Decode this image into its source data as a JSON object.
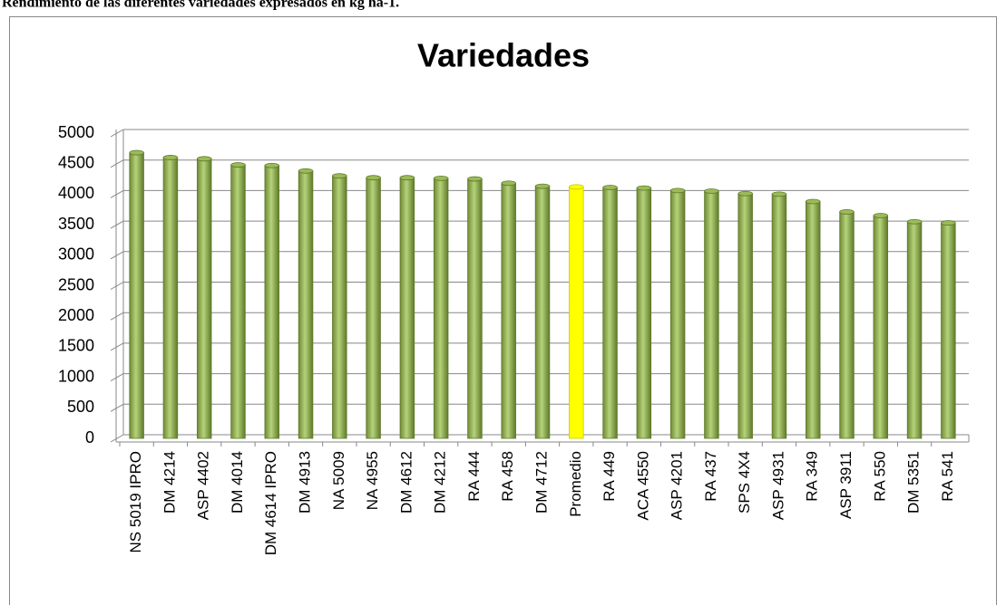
{
  "heading": "Rendimiento de las diferentes variedades expresados en kg ha-1.",
  "chart_data": {
    "type": "bar",
    "title": "Variedades",
    "categories": [
      "NS 5019 IPRO",
      "DM 4214",
      "ASP 4402",
      "DM 4014",
      "DM 4614 IPRO",
      "DM 4913",
      "NA 5009",
      "NA 4955",
      "DM 4612",
      "DM 4212",
      "RA 444",
      "RA 458",
      "DM 4712",
      "Promedio",
      "RA 449",
      "ACA 4550",
      "ASP 4201",
      "RA 437",
      "SPS 4X4",
      "ASP 4931",
      "RA 349",
      "ASP 3911",
      "RA 550",
      "DM 5351",
      "RA 541"
    ],
    "values": [
      4680,
      4600,
      4580,
      4480,
      4470,
      4380,
      4300,
      4270,
      4270,
      4260,
      4250,
      4180,
      4130,
      4120,
      4110,
      4100,
      4060,
      4050,
      4010,
      4000,
      3880,
      3710,
      3650,
      3550,
      3530
    ],
    "colors": [
      "#9bbb59",
      "#9bbb59",
      "#9bbb59",
      "#9bbb59",
      "#9bbb59",
      "#9bbb59",
      "#9bbb59",
      "#9bbb59",
      "#9bbb59",
      "#9bbb59",
      "#9bbb59",
      "#9bbb59",
      "#9bbb59",
      "#ffff00",
      "#9bbb59",
      "#9bbb59",
      "#9bbb59",
      "#9bbb59",
      "#9bbb59",
      "#9bbb59",
      "#9bbb59",
      "#9bbb59",
      "#9bbb59",
      "#9bbb59",
      "#9bbb59"
    ],
    "ylim": [
      0,
      5000
    ],
    "yticks": [
      0,
      500,
      1000,
      1500,
      2000,
      2500,
      3000,
      3500,
      4000,
      4500,
      5000
    ],
    "grid": true
  }
}
